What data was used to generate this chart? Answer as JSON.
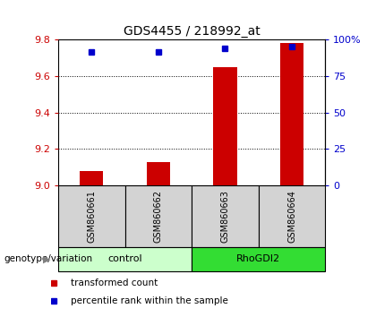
{
  "title": "GDS4455 / 218992_at",
  "samples": [
    "GSM860661",
    "GSM860662",
    "GSM860663",
    "GSM860664"
  ],
  "red_values": [
    9.08,
    9.13,
    9.65,
    9.78
  ],
  "blue_values": [
    9.73,
    9.73,
    9.75,
    9.76
  ],
  "ylim": [
    9.0,
    9.8
  ],
  "yticks": [
    9.0,
    9.2,
    9.4,
    9.6,
    9.8
  ],
  "right_yticks": [
    0,
    25,
    50,
    75,
    100
  ],
  "right_yticklabels": [
    "0",
    "25",
    "50",
    "75",
    "100%"
  ],
  "bar_color": "#cc0000",
  "dot_color": "#0000cc",
  "bar_width": 0.35,
  "left_tick_color": "#cc0000",
  "right_tick_color": "#0000cc",
  "label_transformed": "transformed count",
  "label_percentile": "percentile rank within the sample",
  "genotype_label": "genotype/variation",
  "group1_label": "control",
  "group2_label": "RhoGDI2",
  "group1_color": "#ccffcc",
  "group2_color": "#33dd33",
  "sample_box_color": "#d3d3d3"
}
